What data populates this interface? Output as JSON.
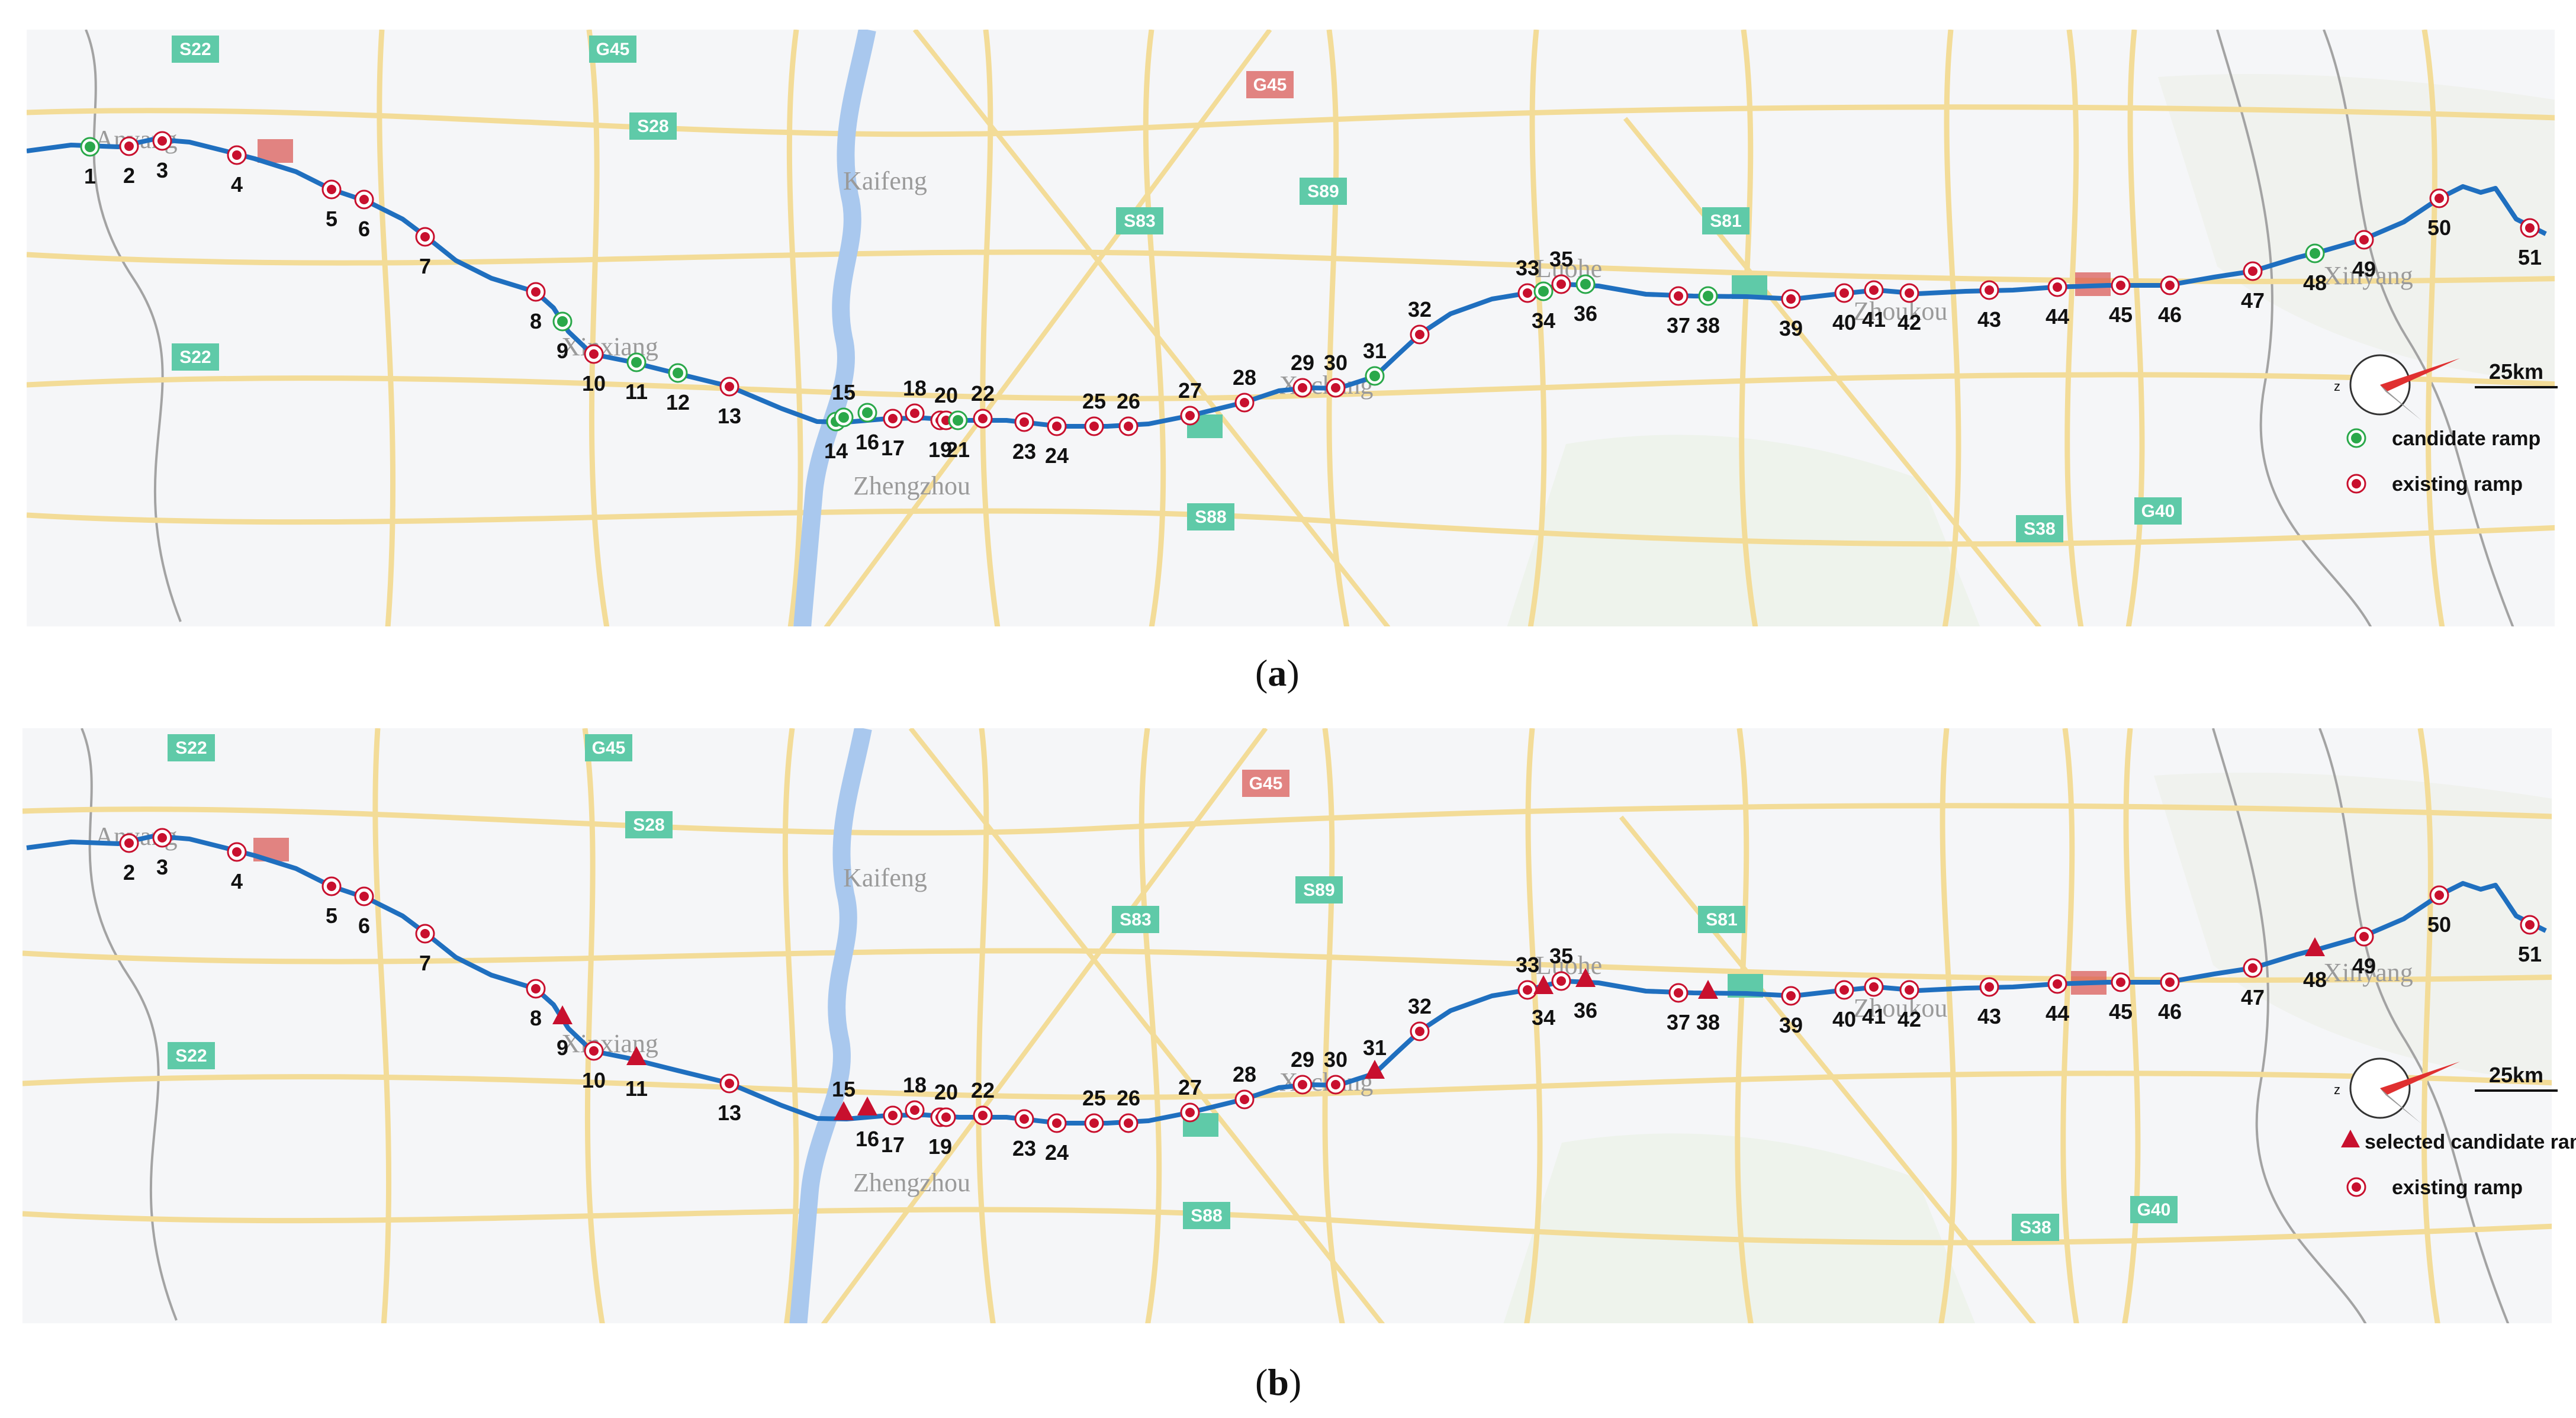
{
  "colors": {
    "route": "#1f6fbf",
    "existing": "#c8102e",
    "candidate": "#2aa84a",
    "road_yellow": "#f3dc98",
    "road_gray": "#9a9a9a",
    "river": "#a9c8ee",
    "shield_green": "#5fcaa8",
    "shield_red": "#d9534f"
  },
  "cities": [
    "Kaifeng",
    "Zhengzhou",
    "Xinxiang",
    "Xuchang",
    "Luohe",
    "Xinyang",
    "Anyang",
    "Zhoukou"
  ],
  "shield_labels": [
    "S22",
    "G45",
    "S28",
    "S22",
    "S83",
    "S89",
    "S81",
    "S88",
    "S38",
    "G40",
    "G45"
  ],
  "panel_a": {
    "caption_letter": "a",
    "legend": {
      "scale_label": "25km",
      "compass_label": "z",
      "items": [
        {
          "label": "candidate ramp",
          "symbol": "candidate-dot"
        },
        {
          "label": "existing ramp",
          "symbol": "existing-dot"
        }
      ]
    },
    "ramps": [
      {
        "n": "1",
        "type": "candidate"
      },
      {
        "n": "2",
        "type": "existing"
      },
      {
        "n": "3",
        "type": "existing"
      },
      {
        "n": "4",
        "type": "existing"
      },
      {
        "n": "5",
        "type": "existing"
      },
      {
        "n": "6",
        "type": "existing"
      },
      {
        "n": "7",
        "type": "existing"
      },
      {
        "n": "8",
        "type": "existing"
      },
      {
        "n": "9",
        "type": "candidate"
      },
      {
        "n": "10",
        "type": "existing"
      },
      {
        "n": "11",
        "type": "candidate"
      },
      {
        "n": "12",
        "type": "candidate"
      },
      {
        "n": "13",
        "type": "existing"
      },
      {
        "n": "14",
        "type": "candidate"
      },
      {
        "n": "15",
        "type": "candidate"
      },
      {
        "n": "16",
        "type": "candidate"
      },
      {
        "n": "17",
        "type": "existing"
      },
      {
        "n": "18",
        "type": "existing"
      },
      {
        "n": "19",
        "type": "existing"
      },
      {
        "n": "20",
        "type": "existing"
      },
      {
        "n": "21",
        "type": "candidate"
      },
      {
        "n": "22",
        "type": "existing"
      },
      {
        "n": "23",
        "type": "existing"
      },
      {
        "n": "24",
        "type": "existing"
      },
      {
        "n": "25",
        "type": "existing"
      },
      {
        "n": "26",
        "type": "existing"
      },
      {
        "n": "27",
        "type": "existing"
      },
      {
        "n": "28",
        "type": "existing"
      },
      {
        "n": "29",
        "type": "existing"
      },
      {
        "n": "30",
        "type": "existing"
      },
      {
        "n": "31",
        "type": "candidate"
      },
      {
        "n": "32",
        "type": "existing"
      },
      {
        "n": "33",
        "type": "existing"
      },
      {
        "n": "34",
        "type": "candidate"
      },
      {
        "n": "35",
        "type": "existing"
      },
      {
        "n": "36",
        "type": "candidate"
      },
      {
        "n": "37",
        "type": "existing"
      },
      {
        "n": "38",
        "type": "candidate"
      },
      {
        "n": "39",
        "type": "existing"
      },
      {
        "n": "40",
        "type": "existing"
      },
      {
        "n": "41",
        "type": "existing"
      },
      {
        "n": "42",
        "type": "existing"
      },
      {
        "n": "43",
        "type": "existing"
      },
      {
        "n": "44",
        "type": "existing"
      },
      {
        "n": "45",
        "type": "existing"
      },
      {
        "n": "46",
        "type": "existing"
      },
      {
        "n": "47",
        "type": "existing"
      },
      {
        "n": "48",
        "type": "candidate"
      },
      {
        "n": "49",
        "type": "existing"
      },
      {
        "n": "50",
        "type": "existing"
      },
      {
        "n": "51",
        "type": "existing"
      }
    ]
  },
  "panel_b": {
    "caption_letter": "b",
    "legend": {
      "scale_label": "25km",
      "compass_label": "z",
      "items": [
        {
          "label": "selected candidate ramp",
          "symbol": "selected-triangle"
        },
        {
          "label": "existing ramp",
          "symbol": "existing-dot"
        }
      ]
    },
    "ramps": [
      {
        "n": "2",
        "type": "existing"
      },
      {
        "n": "3",
        "type": "existing"
      },
      {
        "n": "4",
        "type": "existing"
      },
      {
        "n": "5",
        "type": "existing"
      },
      {
        "n": "6",
        "type": "existing"
      },
      {
        "n": "7",
        "type": "existing"
      },
      {
        "n": "8",
        "type": "existing"
      },
      {
        "n": "9",
        "type": "selected"
      },
      {
        "n": "10",
        "type": "existing"
      },
      {
        "n": "11",
        "type": "selected"
      },
      {
        "n": "13",
        "type": "existing"
      },
      {
        "n": "15",
        "type": "selected"
      },
      {
        "n": "16",
        "type": "selected"
      },
      {
        "n": "17",
        "type": "existing"
      },
      {
        "n": "18",
        "type": "existing"
      },
      {
        "n": "19",
        "type": "existing"
      },
      {
        "n": "20",
        "type": "existing"
      },
      {
        "n": "22",
        "type": "existing"
      },
      {
        "n": "23",
        "type": "existing"
      },
      {
        "n": "24",
        "type": "existing"
      },
      {
        "n": "25",
        "type": "existing"
      },
      {
        "n": "26",
        "type": "existing"
      },
      {
        "n": "27",
        "type": "existing"
      },
      {
        "n": "28",
        "type": "existing"
      },
      {
        "n": "29",
        "type": "existing"
      },
      {
        "n": "30",
        "type": "existing"
      },
      {
        "n": "31",
        "type": "selected"
      },
      {
        "n": "32",
        "type": "existing"
      },
      {
        "n": "33",
        "type": "existing"
      },
      {
        "n": "34",
        "type": "selected"
      },
      {
        "n": "35",
        "type": "existing"
      },
      {
        "n": "36",
        "type": "selected"
      },
      {
        "n": "37",
        "type": "existing"
      },
      {
        "n": "38",
        "type": "selected"
      },
      {
        "n": "39",
        "type": "existing"
      },
      {
        "n": "40",
        "type": "existing"
      },
      {
        "n": "41",
        "type": "existing"
      },
      {
        "n": "42",
        "type": "existing"
      },
      {
        "n": "43",
        "type": "existing"
      },
      {
        "n": "44",
        "type": "existing"
      },
      {
        "n": "45",
        "type": "existing"
      },
      {
        "n": "46",
        "type": "existing"
      },
      {
        "n": "47",
        "type": "existing"
      },
      {
        "n": "48",
        "type": "selected"
      },
      {
        "n": "49",
        "type": "existing"
      },
      {
        "n": "50",
        "type": "existing"
      },
      {
        "n": "51",
        "type": "existing"
      }
    ]
  }
}
